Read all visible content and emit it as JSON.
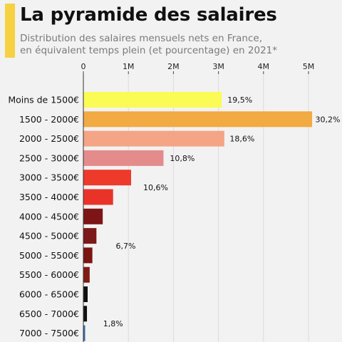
{
  "header": {
    "title": "La pyramide des salaires",
    "subtitle_line1": "Distribution des salaires mensuels nets en France,",
    "subtitle_line2": "en équivalent temps plein (et pourcentage) en 2021*",
    "accent_color": "#f6d142"
  },
  "chart_data": {
    "type": "bar",
    "orientation": "horizontal",
    "xlim": [
      0,
      5200000
    ],
    "x_ticks": [
      0,
      1000000,
      2000000,
      3000000,
      4000000,
      5000000
    ],
    "x_tick_labels": [
      "0",
      "1M",
      "2M",
      "3M",
      "4M",
      "5M"
    ],
    "x_axis_position": "top",
    "grid": true,
    "categories": [
      "Moins de 1500€",
      "1500 - 2000€",
      "2000 - 2500€",
      "2500 - 3000€",
      "3000 - 3500€",
      "3500 - 4000€",
      "4000 - 4500€",
      "4500 - 5000€",
      "5000 - 5500€",
      "5500 - 6000€",
      "6000 - 6500€",
      "6500 - 7000€",
      "7000 - 7500€"
    ],
    "values": [
      3070000,
      5080000,
      3130000,
      1780000,
      1060000,
      660000,
      430000,
      290000,
      200000,
      140000,
      95000,
      80000,
      40000
    ],
    "colors": [
      "#fbfb55",
      "#f2aa42",
      "#f4a585",
      "#e48c8c",
      "#ed3a2b",
      "#ea3328",
      "#7d1415",
      "#7d1919",
      "#7c1412",
      "#801a16",
      "#111111",
      "#111111",
      "#3a6ea8"
    ],
    "annotations": [
      {
        "text": "19,5%",
        "x": 3200000,
        "category_index": 0
      },
      {
        "text": "30,2%",
        "x": 5150000,
        "category_index": 1
      },
      {
        "text": "18,6%",
        "x": 3250000,
        "category_index": 2
      },
      {
        "text": "10,8%",
        "x": 1920000,
        "category_index": 3
      },
      {
        "text": "10,6%",
        "x": 1330000,
        "category_index": 4.5
      },
      {
        "text": "6,7%",
        "x": 720000,
        "category_index": 7.5
      },
      {
        "text": "1,8%",
        "x": 440000,
        "category_index": 11.5
      }
    ]
  }
}
